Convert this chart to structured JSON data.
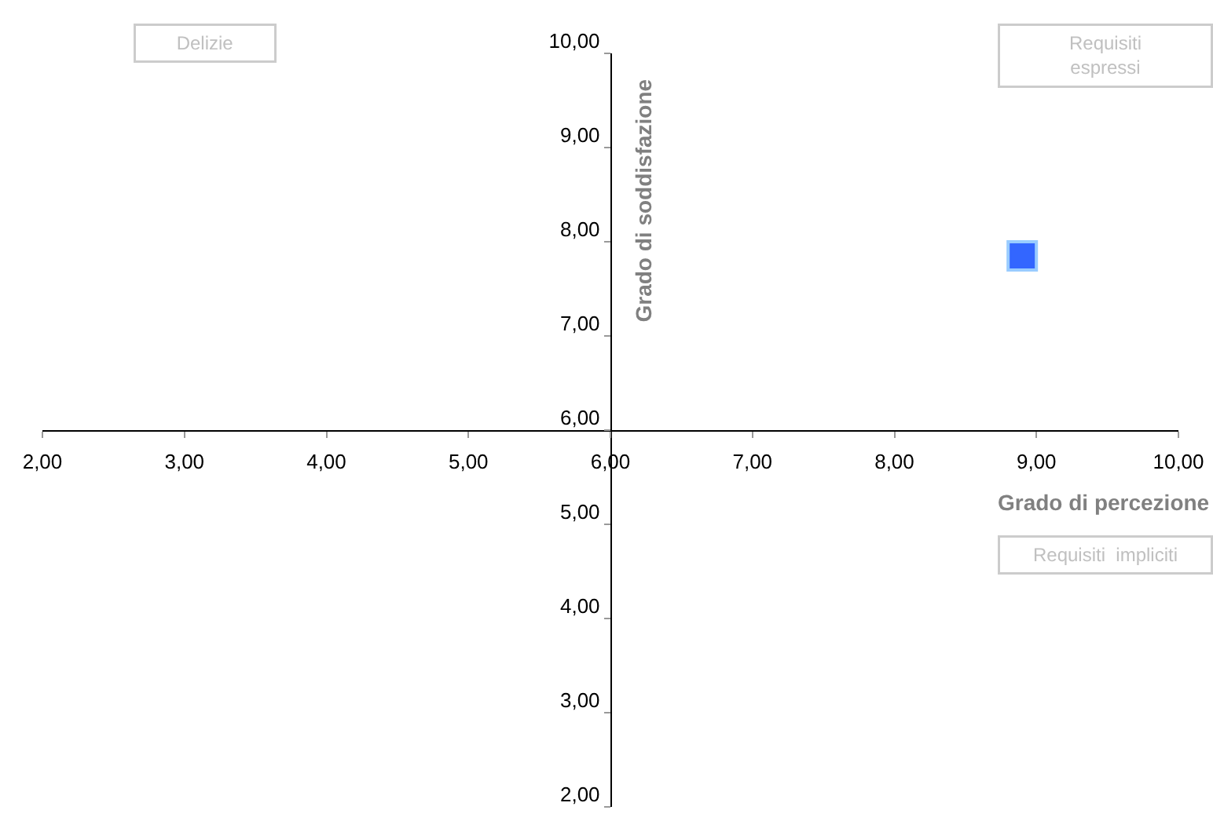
{
  "chart_data": {
    "type": "scatter",
    "xlabel": "Grado di percezione",
    "ylabel": "Grado di soddisfazione",
    "annotations": [
      "Delizie",
      "Requisiti\nespressi",
      "Requisiti  impliciti"
    ],
    "x": [
      8.9
    ],
    "series": [
      {
        "color": "#3366ff",
        "values": [
          7.85
        ]
      }
    ],
    "marker": "square",
    "xlim": [
      2,
      10
    ],
    "ylim": [
      2,
      10
    ],
    "xticks": [
      {
        "value": 2,
        "label": "2,00"
      },
      {
        "value": 3,
        "label": "3,00"
      },
      {
        "value": 4,
        "label": "4,00"
      },
      {
        "value": 5,
        "label": "5,00"
      },
      {
        "value": 6,
        "label": "6,00"
      },
      {
        "value": 7,
        "label": "7,00"
      },
      {
        "value": 8,
        "label": "8,00"
      },
      {
        "value": 9,
        "label": "9,00"
      },
      {
        "value": 10,
        "label": "10,00"
      }
    ],
    "yticks": [
      {
        "value": 2,
        "label": "2,00"
      },
      {
        "value": 3,
        "label": "3,00"
      },
      {
        "value": 4,
        "label": "4,00"
      },
      {
        "value": 5,
        "label": "5,00"
      },
      {
        "value": 6,
        "label": "6,00"
      },
      {
        "value": 7,
        "label": "7,00"
      },
      {
        "value": 8,
        "label": "8,00"
      },
      {
        "value": 9,
        "label": "9,00"
      },
      {
        "value": 10,
        "label": "10,00"
      }
    ],
    "grid": false
  }
}
